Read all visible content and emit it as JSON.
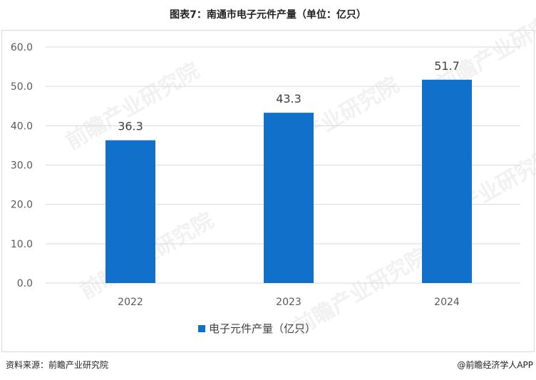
{
  "title": "图表7：南通市电子元件产量（单位：亿只）",
  "footer": {
    "source": "资料来源：前瞻产业研究院",
    "credit": "@前瞻经济学人APP"
  },
  "watermark": "前瞻产业研究院",
  "colors": {
    "bar": "#1170c9",
    "grid": "#d9d9d9",
    "axis_text": "#595959"
  },
  "chart_data": {
    "type": "bar",
    "title": "图表7：南通市电子元件产量（单位：亿只）",
    "categories": [
      "2022",
      "2023",
      "2024"
    ],
    "series": [
      {
        "name": "电子元件产量（亿只）",
        "values": [
          36.3,
          43.3,
          51.7
        ]
      }
    ],
    "yticks": [
      "0.0",
      "10.0",
      "20.0",
      "30.0",
      "40.0",
      "50.0",
      "60.0"
    ],
    "ylim": [
      0,
      60
    ],
    "grid": true,
    "legend": "bottom"
  }
}
